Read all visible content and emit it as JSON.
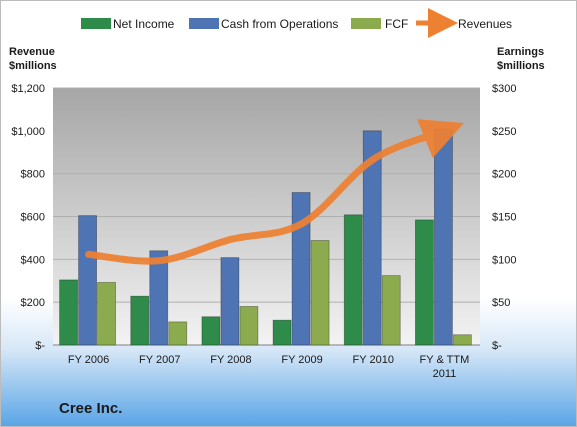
{
  "chart_data": {
    "type": "bar",
    "title": "",
    "company": "Cree Inc.",
    "categories": [
      [
        "FY 2006"
      ],
      [
        "FY 2007"
      ],
      [
        "FY 2008"
      ],
      [
        "FY 2009"
      ],
      [
        "FY 2010"
      ],
      [
        "FY & TTM",
        "2011"
      ]
    ],
    "left_axis": {
      "title_lines": [
        "Revenue",
        "$millions"
      ],
      "ticks": [
        "$-",
        "$200",
        "$400",
        "$600",
        "$800",
        "$1,000",
        "$1,200"
      ],
      "ylim": [
        0,
        1200
      ]
    },
    "right_axis": {
      "title_lines": [
        "Earnings",
        "$millions"
      ],
      "ticks": [
        "$-",
        "$50",
        "$100",
        "$150",
        "$200",
        "$250",
        "$300"
      ],
      "ylim": [
        0,
        300
      ]
    },
    "bar_series": [
      {
        "name": "Net Income",
        "axis": "right",
        "color": "#2e8b4a",
        "values": [
          76,
          57,
          33,
          29,
          152,
          146
        ]
      },
      {
        "name": "Cash from Operations",
        "axis": "right",
        "color": "#4f74b3",
        "values": [
          151,
          110,
          102,
          178,
          250,
          252
        ]
      },
      {
        "name": "FCF",
        "axis": "right",
        "color": "#8caa4e",
        "values": [
          73,
          27,
          45,
          122,
          81,
          12
        ]
      }
    ],
    "line_series": {
      "name": "Revenues",
      "axis": "left",
      "color": "#ee8031",
      "values": [
        423,
        394,
        493,
        567,
        867,
        1000
      ]
    },
    "grid": true,
    "legend_position": "top"
  }
}
